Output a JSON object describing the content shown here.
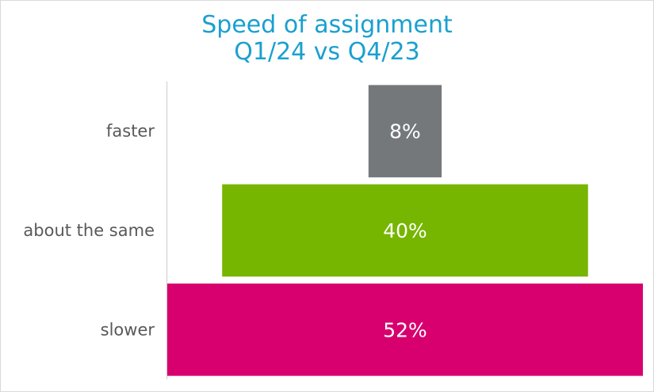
{
  "chart_data": {
    "type": "bar",
    "orientation": "horizontal",
    "layout": "funnel-centered",
    "title": "Speed of assignment",
    "subtitle": "Q1/24 vs Q4/23",
    "categories": [
      "faster",
      "about the same",
      "slower"
    ],
    "values": [
      8,
      40,
      52
    ],
    "data_labels": [
      "8%",
      "40%",
      "52%"
    ],
    "colors": [
      "#75787b",
      "#76b600",
      "#d8006f"
    ],
    "title_color": "#1aa0cf",
    "label_color": "#595959",
    "xlim": [
      0,
      52
    ],
    "gridlines": false,
    "legend": "none"
  }
}
